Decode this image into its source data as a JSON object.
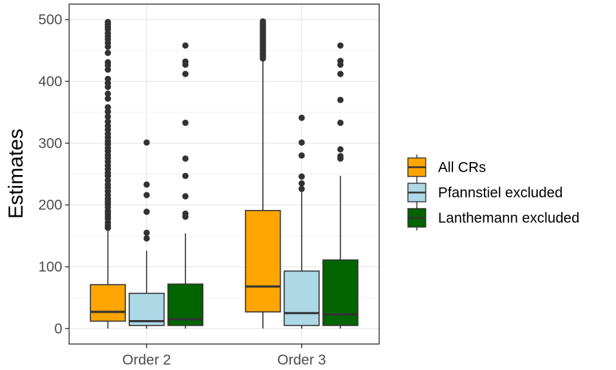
{
  "chart_data": {
    "type": "boxplot",
    "title": "",
    "xlabel": "",
    "ylabel": "Estimates",
    "ylim": [
      -25,
      525
    ],
    "yticks": [
      0,
      100,
      200,
      300,
      400,
      500
    ],
    "grid": true,
    "legend_position": "right",
    "categories": [
      "Order 2",
      "Order 3"
    ],
    "series": [
      {
        "name": "All CRs",
        "color": "#FFA500",
        "boxes": [
          {
            "min": 0,
            "q1": 12,
            "median": 27,
            "q3": 71,
            "max": 160,
            "outliers": [
              163,
              167,
              172,
              178,
              182,
              186,
              190,
              196,
              201,
              205,
              210,
              216,
              222,
              228,
              233,
              240,
              247,
              252,
              258,
              264,
              270,
              276,
              281,
              287,
              292,
              298,
              303,
              309,
              315,
              322,
              328,
              335,
              343,
              351,
              358,
              372,
              380,
              391,
              397,
              404,
              419,
              426,
              431,
              446,
              456,
              462,
              468,
              473,
              478,
              484,
              488,
              492,
              496
            ]
          },
          {
            "min": 0,
            "q1": 27,
            "median": 68,
            "q3": 191,
            "max": 436,
            "outliers": [
              437,
              440,
              443,
              446,
              449,
              452,
              455,
              458,
              461,
              464,
              467,
              470,
              473,
              476,
              479,
              482,
              485,
              488,
              491,
              494,
              497
            ]
          }
        ]
      },
      {
        "name": "Pfannstiel excluded",
        "color": "#ADD8E6",
        "boxes": [
          {
            "min": 0,
            "q1": 5,
            "median": 12,
            "q3": 57,
            "max": 126,
            "outliers": [
              146,
              155,
              189,
              216,
              233,
              301
            ]
          },
          {
            "min": 0,
            "q1": 5,
            "median": 25,
            "q3": 93,
            "max": 222,
            "outliers": [
              226,
              235,
              246,
              280,
              301,
              341
            ]
          }
        ]
      },
      {
        "name": "Lanthemann excluded",
        "color": "#006400",
        "boxes": [
          {
            "min": 0,
            "q1": 5,
            "median": 15,
            "q3": 72,
            "max": 154,
            "outliers": [
              181,
              186,
              214,
              247,
              275,
              333,
              412,
              427,
              432,
              458
            ]
          },
          {
            "min": 0,
            "q1": 5,
            "median": 23,
            "q3": 111,
            "max": 247,
            "outliers": [
              275,
              279,
              290,
              333,
              370,
              412,
              427,
              433,
              458
            ]
          }
        ]
      }
    ]
  }
}
